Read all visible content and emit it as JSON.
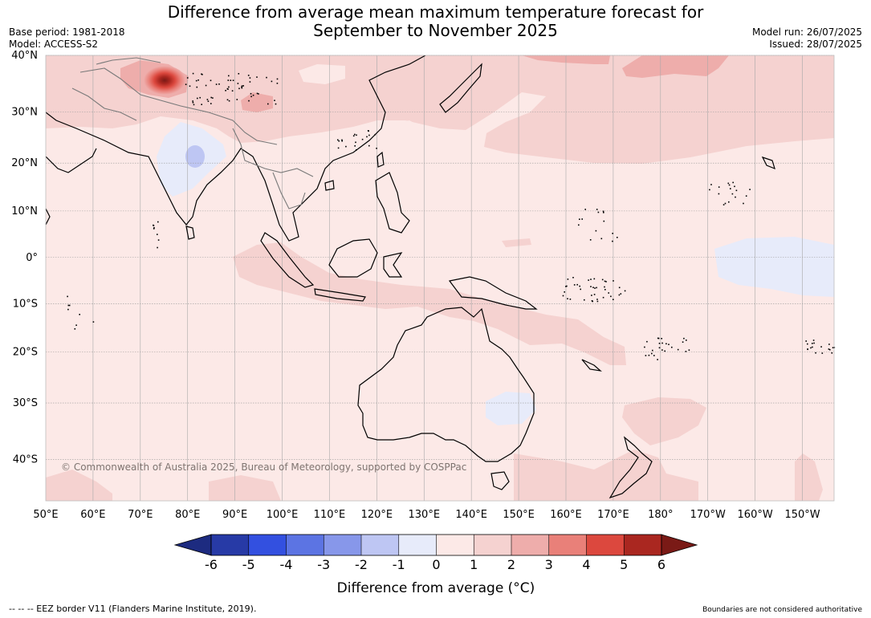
{
  "header": {
    "title_line1": "Difference from average mean maximum temperature forecast for",
    "title_line2": "September to November 2025",
    "base_period": "Base period: 1981-2018",
    "model": "Model: ACCESS-S2",
    "model_run": "Model run: 26/07/2025",
    "issued": "Issued: 28/07/2025"
  },
  "map": {
    "lat_labels": [
      "40°N",
      "30°N",
      "20°N",
      "10°N",
      "0°",
      "10°S",
      "20°S",
      "30°S",
      "40°S"
    ],
    "lat_values": [
      40,
      30,
      20,
      10,
      0,
      -10,
      -20,
      -30,
      -40
    ],
    "lon_labels": [
      "50°E",
      "60°E",
      "70°E",
      "80°E",
      "90°E",
      "100°E",
      "110°E",
      "120°E",
      "130°E",
      "140°E",
      "150°E",
      "160°E",
      "170°E",
      "180°",
      "170°W",
      "160°W",
      "150°W"
    ],
    "lon_values": [
      50,
      60,
      70,
      80,
      90,
      100,
      110,
      120,
      130,
      140,
      150,
      160,
      170,
      180,
      190,
      200,
      210
    ],
    "copyright": "© Commonwealth of Australia 2025, Bureau of Meteorology, supported by COSPPac",
    "base_color": "#fce9e7"
  },
  "colorbar": {
    "title": "Difference from average (°C)",
    "tick_labels": [
      "-6",
      "-5",
      "-4",
      "-3",
      "-2",
      "-1",
      "0",
      "1",
      "2",
      "3",
      "4",
      "5",
      "6"
    ],
    "colors": [
      "#273aa6",
      "#3350e0",
      "#5c74e3",
      "#8797ea",
      "#bec6f3",
      "#e7ebfa",
      "#fce9e7",
      "#f5d2d0",
      "#eeadab",
      "#e98079",
      "#dc483e",
      "#aa2720"
    ],
    "under_color": "#1d2b80",
    "over_color": "#7a1a16"
  },
  "footer": {
    "eez_note": "-- -- -- EEZ border V11 (Flanders Marine Institute, 2019).",
    "boundaries_note": "Boundaries are not considered authoritative"
  }
}
